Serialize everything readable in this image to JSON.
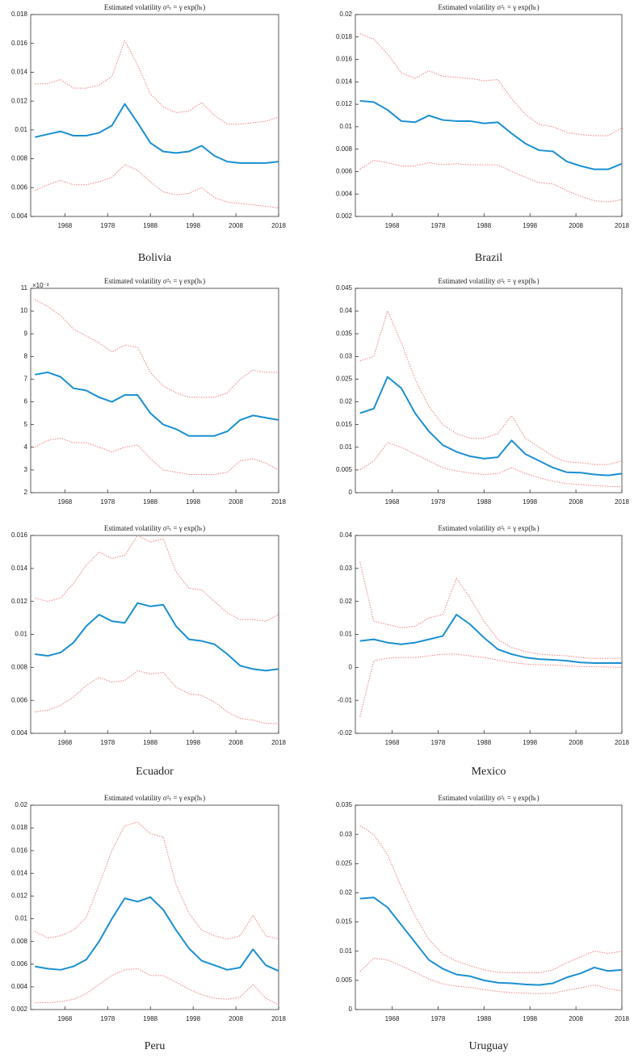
{
  "chart_data": [
    {
      "type": "line",
      "title": "Estimated volatility σ²ₜ = γ exp(hₜ)",
      "caption": "Bolivia",
      "x": [
        1961,
        1964,
        1967,
        1970,
        1973,
        1976,
        1979,
        1982,
        1985,
        1988,
        1991,
        1994,
        1997,
        2000,
        2003,
        2006,
        2009,
        2012,
        2015,
        2018
      ],
      "xlim": [
        1960,
        2018
      ],
      "xticks": [
        1968,
        1978,
        1988,
        1998,
        2008,
        2018
      ],
      "ylim": [
        0.004,
        0.018
      ],
      "yticks": [
        0.004,
        0.006,
        0.008,
        0.01,
        0.012,
        0.014,
        0.016,
        0.018
      ],
      "series": [
        {
          "color": "#f08080",
          "dash": true,
          "values": [
            0.0132,
            0.0132,
            0.0135,
            0.0129,
            0.0129,
            0.0131,
            0.0137,
            0.0162,
            0.0145,
            0.0125,
            0.0116,
            0.0112,
            0.0113,
            0.0119,
            0.011,
            0.0104,
            0.0104,
            0.0105,
            0.0106,
            0.0109
          ]
        },
        {
          "color": "#1a8fd0",
          "dash": false,
          "values": [
            0.0095,
            0.0097,
            0.0099,
            0.0096,
            0.0096,
            0.0098,
            0.0103,
            0.0118,
            0.0105,
            0.0091,
            0.0085,
            0.0084,
            0.0085,
            0.0089,
            0.0082,
            0.0078,
            0.0077,
            0.0077,
            0.0077,
            0.0078
          ]
        },
        {
          "color": "#f08080",
          "dash": true,
          "values": [
            0.0058,
            0.0062,
            0.0065,
            0.0062,
            0.0062,
            0.0064,
            0.0067,
            0.0076,
            0.0072,
            0.0064,
            0.0057,
            0.0055,
            0.0056,
            0.006,
            0.0053,
            0.005,
            0.0049,
            0.0048,
            0.0047,
            0.0046
          ]
        }
      ]
    },
    {
      "type": "line",
      "title": "Estimated volatility σ²ₜ = γ exp(hₜ)",
      "caption": "Brazil",
      "x": [
        1961,
        1964,
        1967,
        1970,
        1973,
        1976,
        1979,
        1982,
        1985,
        1988,
        1991,
        1994,
        1997,
        2000,
        2003,
        2006,
        2009,
        2012,
        2015,
        2018
      ],
      "xlim": [
        1960,
        2018
      ],
      "xticks": [
        1968,
        1978,
        1988,
        1998,
        2008,
        2018
      ],
      "ylim": [
        0.002,
        0.02
      ],
      "yticks": [
        0.002,
        0.004,
        0.006,
        0.008,
        0.01,
        0.012,
        0.014,
        0.016,
        0.018,
        0.02
      ],
      "series": [
        {
          "color": "#f08080",
          "dash": true,
          "values": [
            0.0183,
            0.0178,
            0.0165,
            0.0148,
            0.0143,
            0.015,
            0.0145,
            0.0144,
            0.0143,
            0.0141,
            0.0142,
            0.0125,
            0.0111,
            0.0102,
            0.01,
            0.0095,
            0.0093,
            0.0092,
            0.0092,
            0.0099
          ]
        },
        {
          "color": "#1a8fd0",
          "dash": false,
          "values": [
            0.0123,
            0.0122,
            0.0115,
            0.0105,
            0.0104,
            0.011,
            0.0106,
            0.0105,
            0.0105,
            0.0103,
            0.0104,
            0.0094,
            0.0085,
            0.0079,
            0.0078,
            0.0069,
            0.0065,
            0.0062,
            0.0062,
            0.0067
          ]
        },
        {
          "color": "#f08080",
          "dash": true,
          "values": [
            0.0062,
            0.007,
            0.0068,
            0.0065,
            0.0065,
            0.0068,
            0.0066,
            0.0067,
            0.0066,
            0.0066,
            0.0066,
            0.006,
            0.0055,
            0.005,
            0.0049,
            0.0043,
            0.0038,
            0.0034,
            0.0033,
            0.0035
          ]
        }
      ]
    },
    {
      "type": "line",
      "title": "Estimated volatility σ²ₜ = γ exp(hₜ)",
      "axis_annotation": "×10⁻³",
      "x": [
        1961,
        1964,
        1967,
        1970,
        1973,
        1976,
        1979,
        1982,
        1985,
        1988,
        1991,
        1994,
        1997,
        2000,
        2003,
        2006,
        2009,
        2012,
        2015,
        2018
      ],
      "xlim": [
        1960,
        2018
      ],
      "xticks": [
        1968,
        1978,
        1988,
        1998,
        2008,
        2018
      ],
      "ylim": [
        2,
        11
      ],
      "yticks": [
        2,
        3,
        4,
        5,
        6,
        7,
        8,
        9,
        10,
        11
      ],
      "series": [
        {
          "color": "#f08080",
          "dash": true,
          "values": [
            10.5,
            10.2,
            9.8,
            9.2,
            8.9,
            8.6,
            8.2,
            8.5,
            8.4,
            7.3,
            6.7,
            6.4,
            6.2,
            6.2,
            6.2,
            6.4,
            7.0,
            7.4,
            7.3,
            7.3
          ]
        },
        {
          "color": "#1a8fd0",
          "dash": false,
          "values": [
            7.2,
            7.3,
            7.1,
            6.6,
            6.5,
            6.2,
            6.0,
            6.3,
            6.3,
            5.5,
            5.0,
            4.8,
            4.5,
            4.5,
            4.5,
            4.7,
            5.2,
            5.4,
            5.3,
            5.2
          ]
        },
        {
          "color": "#f08080",
          "dash": true,
          "values": [
            4.0,
            4.3,
            4.4,
            4.2,
            4.2,
            4.0,
            3.8,
            4.0,
            4.1,
            3.5,
            3.0,
            2.9,
            2.8,
            2.8,
            2.8,
            2.9,
            3.4,
            3.5,
            3.3,
            3.0
          ]
        }
      ]
    },
    {
      "type": "line",
      "title": "Estimated volatility σ²ₜ = γ exp(hₜ)",
      "x": [
        1961,
        1964,
        1967,
        1970,
        1973,
        1976,
        1979,
        1982,
        1985,
        1988,
        1991,
        1994,
        1997,
        2000,
        2003,
        2006,
        2009,
        2012,
        2015,
        2018
      ],
      "xlim": [
        1960,
        2018
      ],
      "xticks": [
        1968,
        1978,
        1988,
        1998,
        2008,
        2018
      ],
      "ylim": [
        0,
        0.045
      ],
      "yticks": [
        0,
        0.005,
        0.01,
        0.015,
        0.02,
        0.025,
        0.03,
        0.035,
        0.04,
        0.045
      ],
      "series": [
        {
          "color": "#f08080",
          "dash": true,
          "values": [
            0.029,
            0.03,
            0.04,
            0.033,
            0.025,
            0.019,
            0.015,
            0.013,
            0.012,
            0.012,
            0.013,
            0.017,
            0.012,
            0.01,
            0.008,
            0.0068,
            0.0066,
            0.0062,
            0.0062,
            0.007
          ]
        },
        {
          "color": "#1a8fd0",
          "dash": false,
          "values": [
            0.0175,
            0.0185,
            0.0255,
            0.023,
            0.0175,
            0.0135,
            0.0105,
            0.009,
            0.008,
            0.0075,
            0.0078,
            0.0115,
            0.0085,
            0.007,
            0.0055,
            0.0045,
            0.0044,
            0.004,
            0.0038,
            0.0042
          ]
        },
        {
          "color": "#f08080",
          "dash": true,
          "values": [
            0.005,
            0.007,
            0.011,
            0.01,
            0.0085,
            0.007,
            0.0055,
            0.0048,
            0.0043,
            0.004,
            0.0042,
            0.0055,
            0.0042,
            0.0033,
            0.0025,
            0.002,
            0.0018,
            0.0015,
            0.0014,
            0.0013
          ]
        }
      ]
    },
    {
      "type": "line",
      "title": "Estimated volatility σ²ₜ = γ exp(hₜ)",
      "caption": "Ecuador",
      "x": [
        1961,
        1964,
        1967,
        1970,
        1973,
        1976,
        1979,
        1982,
        1985,
        1988,
        1991,
        1994,
        1997,
        2000,
        2003,
        2006,
        2009,
        2012,
        2015,
        2018
      ],
      "xlim": [
        1960,
        2018
      ],
      "xticks": [
        1968,
        1978,
        1988,
        1998,
        2008,
        2018
      ],
      "ylim": [
        0.004,
        0.016
      ],
      "yticks": [
        0.004,
        0.006,
        0.008,
        0.01,
        0.012,
        0.014,
        0.016
      ],
      "series": [
        {
          "color": "#f08080",
          "dash": true,
          "values": [
            0.0122,
            0.012,
            0.0122,
            0.0131,
            0.0142,
            0.015,
            0.0146,
            0.0148,
            0.016,
            0.0156,
            0.0158,
            0.0138,
            0.0128,
            0.0127,
            0.012,
            0.0113,
            0.0109,
            0.0109,
            0.0108,
            0.0112
          ]
        },
        {
          "color": "#1a8fd0",
          "dash": false,
          "values": [
            0.0088,
            0.0087,
            0.0089,
            0.0095,
            0.0105,
            0.0112,
            0.0108,
            0.0107,
            0.0119,
            0.0117,
            0.0118,
            0.0105,
            0.0097,
            0.0096,
            0.0094,
            0.0088,
            0.0081,
            0.0079,
            0.0078,
            0.0079
          ]
        },
        {
          "color": "#f08080",
          "dash": true,
          "values": [
            0.0053,
            0.0054,
            0.0057,
            0.0062,
            0.0069,
            0.0074,
            0.0071,
            0.0072,
            0.0078,
            0.0076,
            0.0077,
            0.0068,
            0.0064,
            0.0063,
            0.0059,
            0.0053,
            0.0049,
            0.0048,
            0.0046,
            0.0046
          ]
        }
      ]
    },
    {
      "type": "line",
      "title": "Estimated volatility σ²ₜ = γ exp(hₜ)",
      "caption": "Mexico",
      "x": [
        1961,
        1964,
        1967,
        1970,
        1973,
        1976,
        1979,
        1982,
        1985,
        1988,
        1991,
        1994,
        1997,
        2000,
        2003,
        2006,
        2009,
        2012,
        2015,
        2018
      ],
      "xlim": [
        1960,
        2018
      ],
      "xticks": [
        1968,
        1978,
        1988,
        1998,
        2008,
        2018
      ],
      "ylim": [
        -0.02,
        0.04
      ],
      "yticks": [
        -0.02,
        -0.01,
        0,
        0.01,
        0.02,
        0.03,
        0.04
      ],
      "series": [
        {
          "color": "#f08080",
          "dash": true,
          "values": [
            0.032,
            0.014,
            0.013,
            0.012,
            0.0125,
            0.015,
            0.016,
            0.027,
            0.021,
            0.014,
            0.0085,
            0.006,
            0.0048,
            0.004,
            0.0037,
            0.0035,
            0.003,
            0.0027,
            0.0027,
            0.0028
          ]
        },
        {
          "color": "#1a8fd0",
          "dash": false,
          "values": [
            0.008,
            0.0085,
            0.0075,
            0.007,
            0.0075,
            0.0085,
            0.0095,
            0.016,
            0.013,
            0.009,
            0.0055,
            0.004,
            0.003,
            0.0025,
            0.0023,
            0.002,
            0.0015,
            0.0013,
            0.0013,
            0.0013
          ]
        },
        {
          "color": "#f08080",
          "dash": true,
          "values": [
            -0.015,
            0.002,
            0.0028,
            0.003,
            0.003,
            0.0035,
            0.004,
            0.004,
            0.0035,
            0.003,
            0.0022,
            0.0015,
            0.001,
            0.0008,
            0.0007,
            0.0005,
            0.0003,
            0.0002,
            0.0001,
            0
          ]
        }
      ]
    },
    {
      "type": "line",
      "title": "Estimated volatility σ²ₜ = γ exp(hₜ)",
      "caption": "Peru",
      "x": [
        1961,
        1964,
        1967,
        1970,
        1973,
        1976,
        1979,
        1982,
        1985,
        1988,
        1991,
        1994,
        1997,
        2000,
        2003,
        2006,
        2009,
        2012,
        2015,
        2018
      ],
      "xlim": [
        1960,
        2018
      ],
      "xticks": [
        1968,
        1978,
        1988,
        1998,
        2008,
        2018
      ],
      "ylim": [
        0.002,
        0.02
      ],
      "yticks": [
        0.002,
        0.004,
        0.006,
        0.008,
        0.01,
        0.012,
        0.014,
        0.016,
        0.018,
        0.02
      ],
      "series": [
        {
          "color": "#f08080",
          "dash": true,
          "values": [
            0.0089,
            0.0083,
            0.0085,
            0.009,
            0.0101,
            0.013,
            0.016,
            0.0182,
            0.0185,
            0.0175,
            0.0172,
            0.013,
            0.0105,
            0.009,
            0.0085,
            0.0082,
            0.0085,
            0.0103,
            0.0085,
            0.0082
          ]
        },
        {
          "color": "#1a8fd0",
          "dash": false,
          "values": [
            0.0058,
            0.0056,
            0.0055,
            0.0058,
            0.0064,
            0.008,
            0.01,
            0.0118,
            0.0115,
            0.0119,
            0.0108,
            0.009,
            0.0074,
            0.0063,
            0.0059,
            0.0055,
            0.0057,
            0.0073,
            0.0059,
            0.0054
          ]
        },
        {
          "color": "#f08080",
          "dash": true,
          "values": [
            0.0026,
            0.0026,
            0.0027,
            0.0029,
            0.0034,
            0.0042,
            0.005,
            0.0055,
            0.0056,
            0.005,
            0.005,
            0.0044,
            0.0038,
            0.0033,
            0.003,
            0.0029,
            0.0031,
            0.0042,
            0.003,
            0.0024
          ]
        }
      ]
    },
    {
      "type": "line",
      "title": "Estimated volatility σ²ₜ = γ exp(hₜ)",
      "caption": "Uruguay",
      "x": [
        1961,
        1964,
        1967,
        1970,
        1973,
        1976,
        1979,
        1982,
        1985,
        1988,
        1991,
        1994,
        1997,
        2000,
        2003,
        2006,
        2009,
        2012,
        2015,
        2018
      ],
      "xlim": [
        1960,
        2018
      ],
      "xticks": [
        1968,
        1978,
        1988,
        1998,
        2008,
        2018
      ],
      "ylim": [
        0,
        0.035
      ],
      "yticks": [
        0,
        0.005,
        0.01,
        0.015,
        0.02,
        0.025,
        0.03,
        0.035
      ],
      "series": [
        {
          "color": "#f08080",
          "dash": true,
          "values": [
            0.0315,
            0.03,
            0.0265,
            0.021,
            0.016,
            0.012,
            0.0095,
            0.0083,
            0.0075,
            0.0068,
            0.0064,
            0.0063,
            0.0063,
            0.0063,
            0.0068,
            0.008,
            0.009,
            0.01,
            0.0096,
            0.01
          ]
        },
        {
          "color": "#1a8fd0",
          "dash": false,
          "values": [
            0.019,
            0.0192,
            0.0175,
            0.0145,
            0.0115,
            0.0085,
            0.007,
            0.006,
            0.0057,
            0.005,
            0.0046,
            0.0045,
            0.0043,
            0.0042,
            0.0045,
            0.0055,
            0.0062,
            0.0072,
            0.0066,
            0.0068
          ]
        },
        {
          "color": "#f08080",
          "dash": true,
          "values": [
            0.0065,
            0.0088,
            0.0085,
            0.0075,
            0.0064,
            0.0052,
            0.0044,
            0.004,
            0.0038,
            0.0034,
            0.0031,
            0.0029,
            0.0028,
            0.0027,
            0.0028,
            0.0033,
            0.0037,
            0.0042,
            0.0036,
            0.0032
          ]
        }
      ]
    }
  ]
}
